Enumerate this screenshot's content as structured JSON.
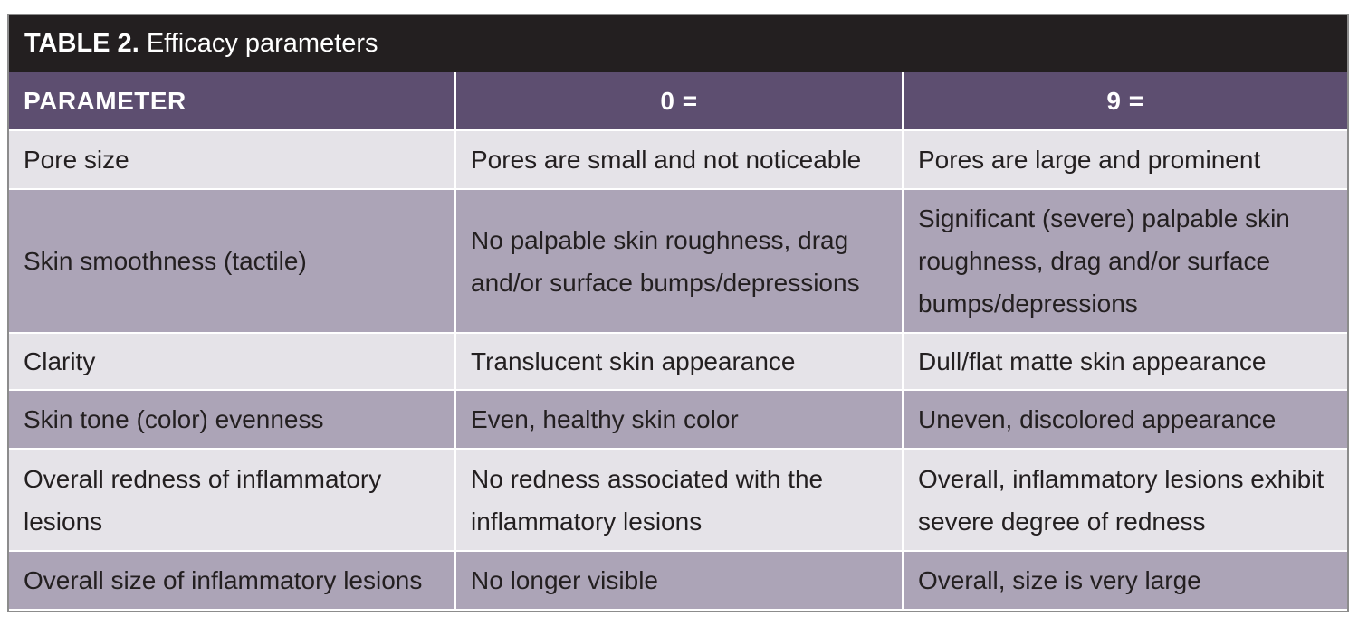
{
  "table": {
    "label": "TABLE 2.",
    "title": "Efficacy parameters",
    "headers": [
      "PARAMETER",
      "0 =",
      "9 ="
    ],
    "rows": [
      {
        "parameter": "Pore size",
        "score_0": "Pores are small and not noticeable",
        "score_9": "Pores are large and prominent"
      },
      {
        "parameter": "Skin smoothness (tactile)",
        "score_0": "No palpable skin roughness, drag and/or surface bumps/depressions",
        "score_9": "Significant (severe) palpable skin roughness, drag and/or surface bumps/depressions"
      },
      {
        "parameter": "Clarity",
        "score_0": "Translucent skin appearance",
        "score_9": "Dull/flat matte skin appearance"
      },
      {
        "parameter": "Skin tone (color) evenness",
        "score_0": "Even, healthy skin color",
        "score_9": "Uneven, discolored appearance"
      },
      {
        "parameter": "Overall redness of inflammatory lesions",
        "score_0": "No redness associated with the inflammatory lesions",
        "score_9": "Overall, inflammatory lesions exhibit severe degree of redness"
      },
      {
        "parameter": "Overall size of inflammatory lesions",
        "score_0": "No longer visible",
        "score_9": "Overall, size is very large"
      }
    ]
  },
  "colors": {
    "caption_bg": "#231f20",
    "header_bg": "#5d4e70",
    "row_light": "#e5e3e8",
    "row_dark": "#aca4b7"
  }
}
